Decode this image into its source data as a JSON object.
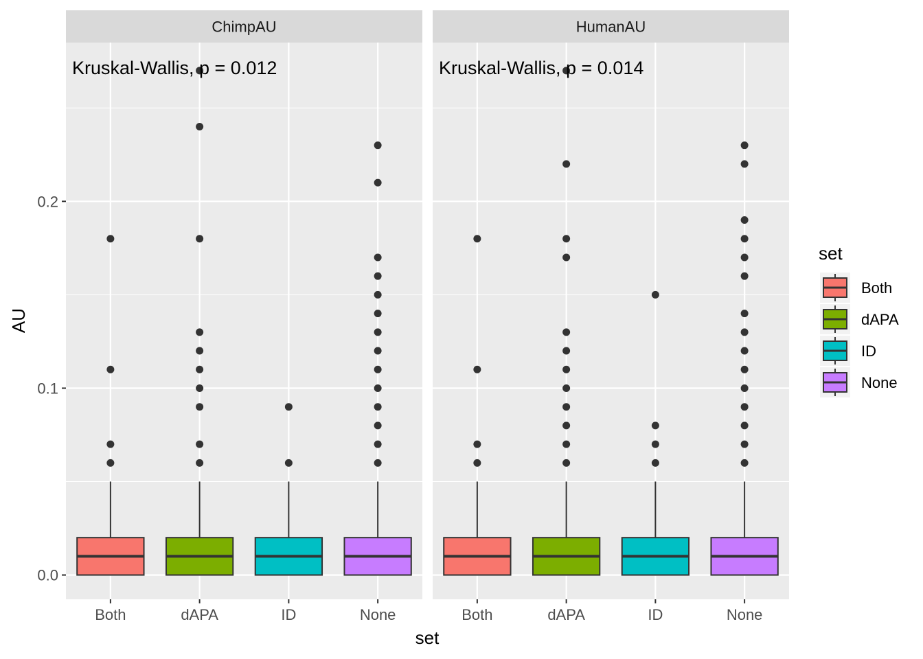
{
  "chart_data": {
    "type": "boxplot",
    "xlabel": "set",
    "ylabel": "AU",
    "y_ticks": [
      0.0,
      0.1,
      0.2
    ],
    "y_tick_labels": [
      "0.0",
      "0.1",
      "0.2"
    ],
    "ylim": [
      -0.013,
      0.285
    ],
    "grid": true,
    "legend": {
      "title": "set",
      "position": "right",
      "entries": [
        {
          "label": "Both",
          "color": "#F8766D"
        },
        {
          "label": "dAPA",
          "color": "#7CAE00"
        },
        {
          "label": "ID",
          "color": "#00BFC4"
        },
        {
          "label": "None",
          "color": "#C77CFF"
        }
      ]
    },
    "categories": [
      "Both",
      "dAPA",
      "ID",
      "None"
    ],
    "panels": [
      {
        "strip": "ChimpAU",
        "annotation": "Kruskal-Wallis, p = 0.012",
        "boxes": [
          {
            "category": "Both",
            "q1": 0.0,
            "median": 0.01,
            "q3": 0.02,
            "whisker_low": 0.0,
            "whisker_high": 0.05,
            "outliers": [
              0.06,
              0.07,
              0.11,
              0.18
            ]
          },
          {
            "category": "dAPA",
            "q1": 0.0,
            "median": 0.01,
            "q3": 0.02,
            "whisker_low": 0.0,
            "whisker_high": 0.05,
            "outliers": [
              0.06,
              0.07,
              0.09,
              0.1,
              0.11,
              0.12,
              0.13,
              0.18,
              0.24,
              0.27
            ]
          },
          {
            "category": "ID",
            "q1": 0.0,
            "median": 0.01,
            "q3": 0.02,
            "whisker_low": 0.0,
            "whisker_high": 0.05,
            "outliers": [
              0.06,
              0.09
            ]
          },
          {
            "category": "None",
            "q1": 0.0,
            "median": 0.01,
            "q3": 0.02,
            "whisker_low": 0.0,
            "whisker_high": 0.05,
            "outliers": [
              0.06,
              0.07,
              0.08,
              0.09,
              0.1,
              0.11,
              0.12,
              0.13,
              0.14,
              0.15,
              0.16,
              0.17,
              0.21,
              0.23
            ]
          }
        ]
      },
      {
        "strip": "HumanAU",
        "annotation": "Kruskal-Wallis, p = 0.014",
        "boxes": [
          {
            "category": "Both",
            "q1": 0.0,
            "median": 0.01,
            "q3": 0.02,
            "whisker_low": 0.0,
            "whisker_high": 0.05,
            "outliers": [
              0.06,
              0.07,
              0.11,
              0.18
            ]
          },
          {
            "category": "dAPA",
            "q1": 0.0,
            "median": 0.01,
            "q3": 0.02,
            "whisker_low": 0.0,
            "whisker_high": 0.05,
            "outliers": [
              0.06,
              0.07,
              0.08,
              0.09,
              0.1,
              0.11,
              0.12,
              0.13,
              0.17,
              0.18,
              0.22,
              0.27
            ]
          },
          {
            "category": "ID",
            "q1": 0.0,
            "median": 0.01,
            "q3": 0.02,
            "whisker_low": 0.0,
            "whisker_high": 0.05,
            "outliers": [
              0.06,
              0.07,
              0.08,
              0.15
            ]
          },
          {
            "category": "None",
            "q1": 0.0,
            "median": 0.01,
            "q3": 0.02,
            "whisker_low": 0.0,
            "whisker_high": 0.05,
            "outliers": [
              0.06,
              0.07,
              0.08,
              0.09,
              0.1,
              0.11,
              0.12,
              0.13,
              0.14,
              0.16,
              0.17,
              0.18,
              0.19,
              0.22,
              0.23
            ]
          }
        ]
      }
    ]
  }
}
